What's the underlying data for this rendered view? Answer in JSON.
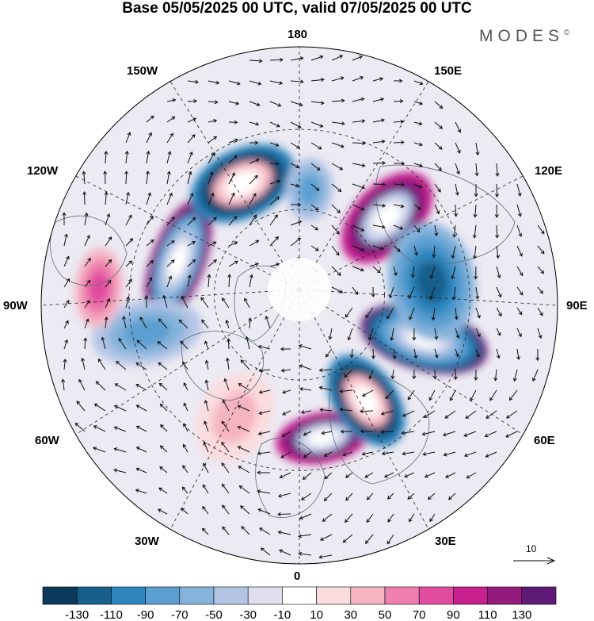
{
  "title": "Base 05/05/2025 00 UTC, valid 07/05/2025 00 UTC",
  "brand": "MODES",
  "brand_mark": "©",
  "longitude_labels": {
    "lon_180": "180",
    "lon_150W": "150W",
    "lon_150E": "150E",
    "lon_120W": "120W",
    "lon_120E": "120E",
    "lon_90W": "90W",
    "lon_90E": "90E",
    "lon_60W": "60W",
    "lon_60E": "60E",
    "lon_30W": "30W",
    "lon_30E": "30E",
    "lon_0": "0"
  },
  "reference_vector": {
    "label": "10"
  },
  "colorbar": {
    "labels": [
      "-130",
      "-110",
      "-90",
      "-70",
      "-50",
      "-30",
      "-10",
      "10",
      "30",
      "50",
      "70",
      "90",
      "110",
      "130"
    ],
    "colors": [
      "#0b3a5c",
      "#175f8d",
      "#2f86bf",
      "#5a9fd0",
      "#86b3db",
      "#b3c5e5",
      "#dedeee",
      "#ffffff",
      "#fbdcde",
      "#f6b3c2",
      "#ee7fae",
      "#e04c9e",
      "#c71f8e",
      "#951a7e",
      "#5f1a78"
    ]
  },
  "anomaly_centers": [
    {
      "lon": 135,
      "colour_index": 12
    },
    {
      "lon": 75,
      "colour_index": 14
    },
    {
      "lon": 10,
      "colour_index": 12
    },
    {
      "lon": 35,
      "colour_index": 2
    },
    {
      "lon": -110,
      "colour_index": 13
    },
    {
      "lon": -155,
      "colour_index": 2
    },
    {
      "lon": 100,
      "colour_index": 4
    },
    {
      "lon": -80,
      "colour_index": 5
    },
    {
      "lon": -30,
      "colour_index": 8
    },
    {
      "lon": 175,
      "colour_index": 5
    },
    {
      "lon": -95,
      "colour_index": 9
    }
  ]
}
